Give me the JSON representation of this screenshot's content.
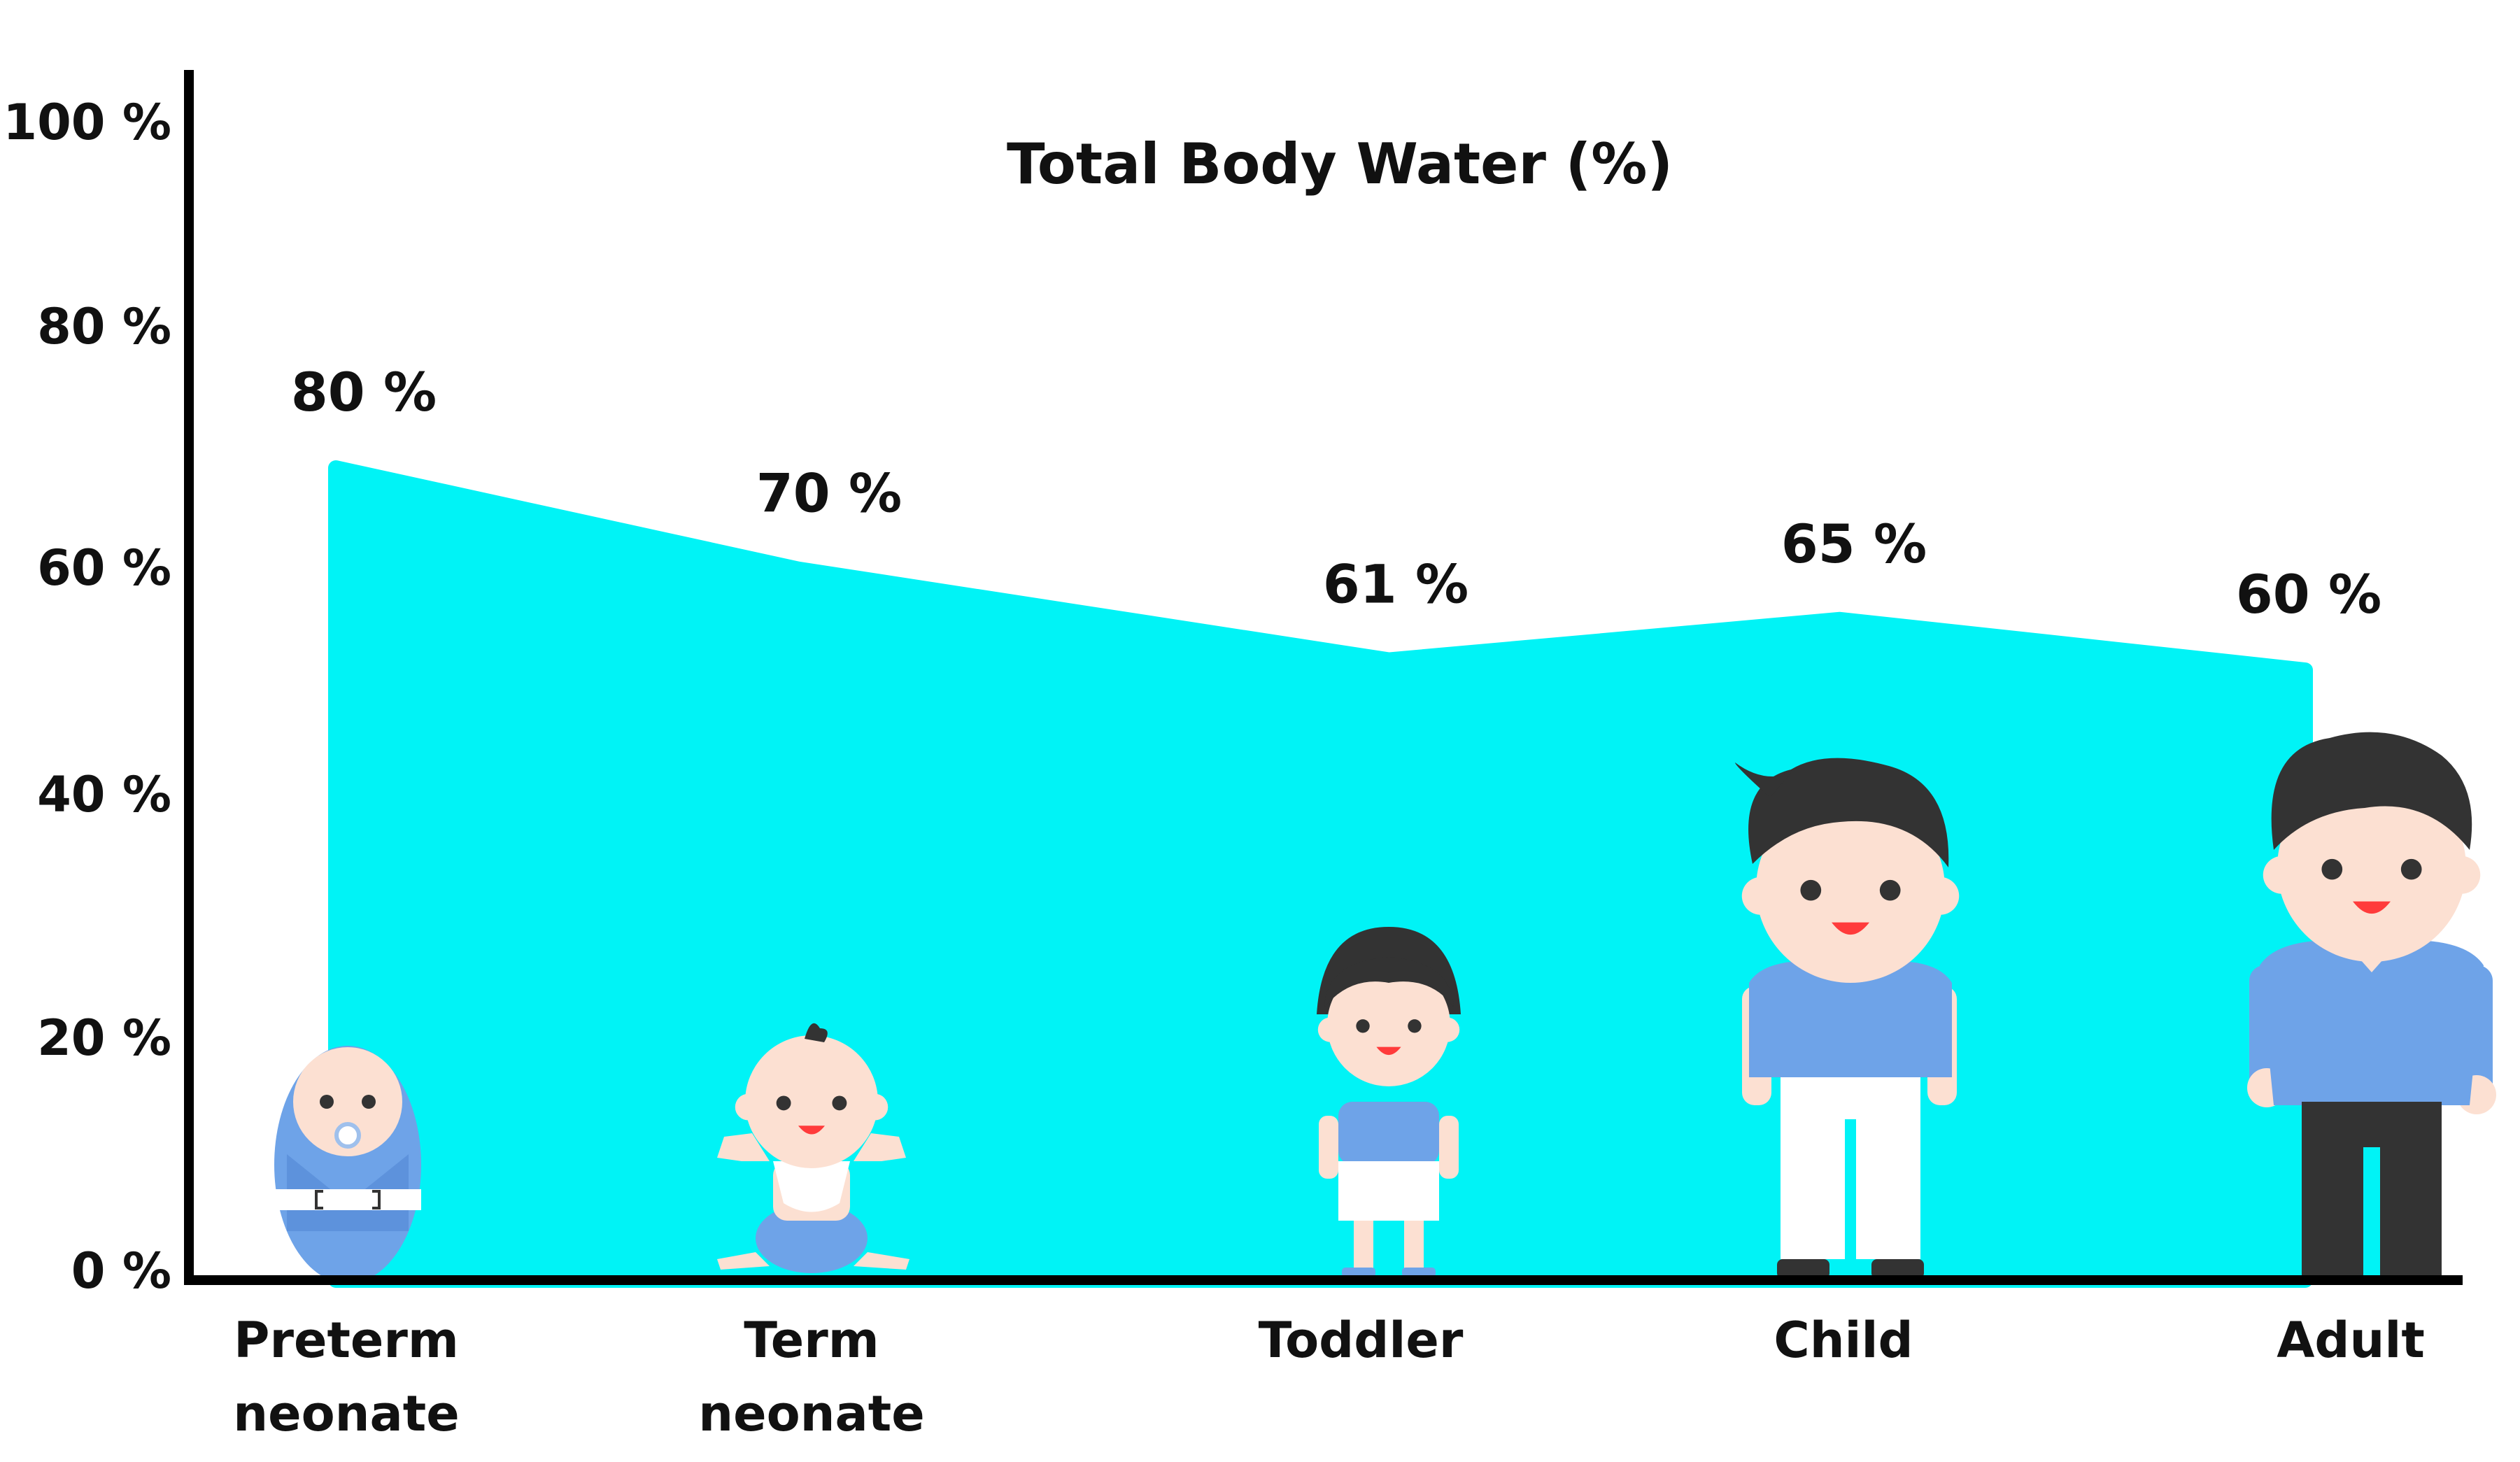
{
  "chart_data": {
    "type": "area",
    "title": "Total Body Water (%)",
    "categories": [
      "Preterm neonate",
      "Term neonate",
      "Toddler",
      "Child",
      "Adult"
    ],
    "category_lines": [
      [
        "Preterm",
        "neonate"
      ],
      [
        "Term",
        "neonate"
      ],
      [
        "Toddler"
      ],
      [
        "Child"
      ],
      [
        "Adult"
      ]
    ],
    "values": [
      80,
      70,
      61,
      65,
      60
    ],
    "data_labels": [
      "80 %",
      "70 %",
      "61 %",
      "65 %",
      "60 %"
    ],
    "y_ticks": [
      0,
      20,
      40,
      60,
      80,
      100
    ],
    "y_tick_labels": [
      "0 %",
      "20 %",
      "40 %",
      "60 %",
      "80 %",
      "100 %"
    ],
    "ylim": [
      0,
      100
    ],
    "xlabel": "",
    "ylabel": "",
    "grid": false,
    "legend": "none",
    "fill_color": "#00F3F6",
    "axis_color": "#000000",
    "figures": [
      "swaddled-baby-icon",
      "baby-icon",
      "toddler-icon",
      "child-icon",
      "adult-icon"
    ],
    "figure_colors": {
      "shirt": "#6EA3E8",
      "skin": "#FCE0D2",
      "hair": "#333333",
      "pants_light": "#FFFFFF",
      "pants_dark": "#333333",
      "mouth": "#FF3B3B"
    }
  }
}
